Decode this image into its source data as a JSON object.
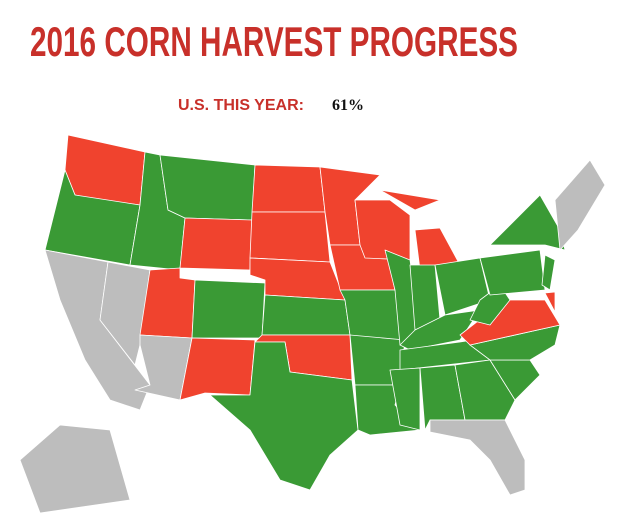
{
  "header": {
    "title": "2016 CORN HARVEST PROGRESS"
  },
  "summary": {
    "label": "U.S. THIS YEAR:",
    "value": "61%"
  }
}
